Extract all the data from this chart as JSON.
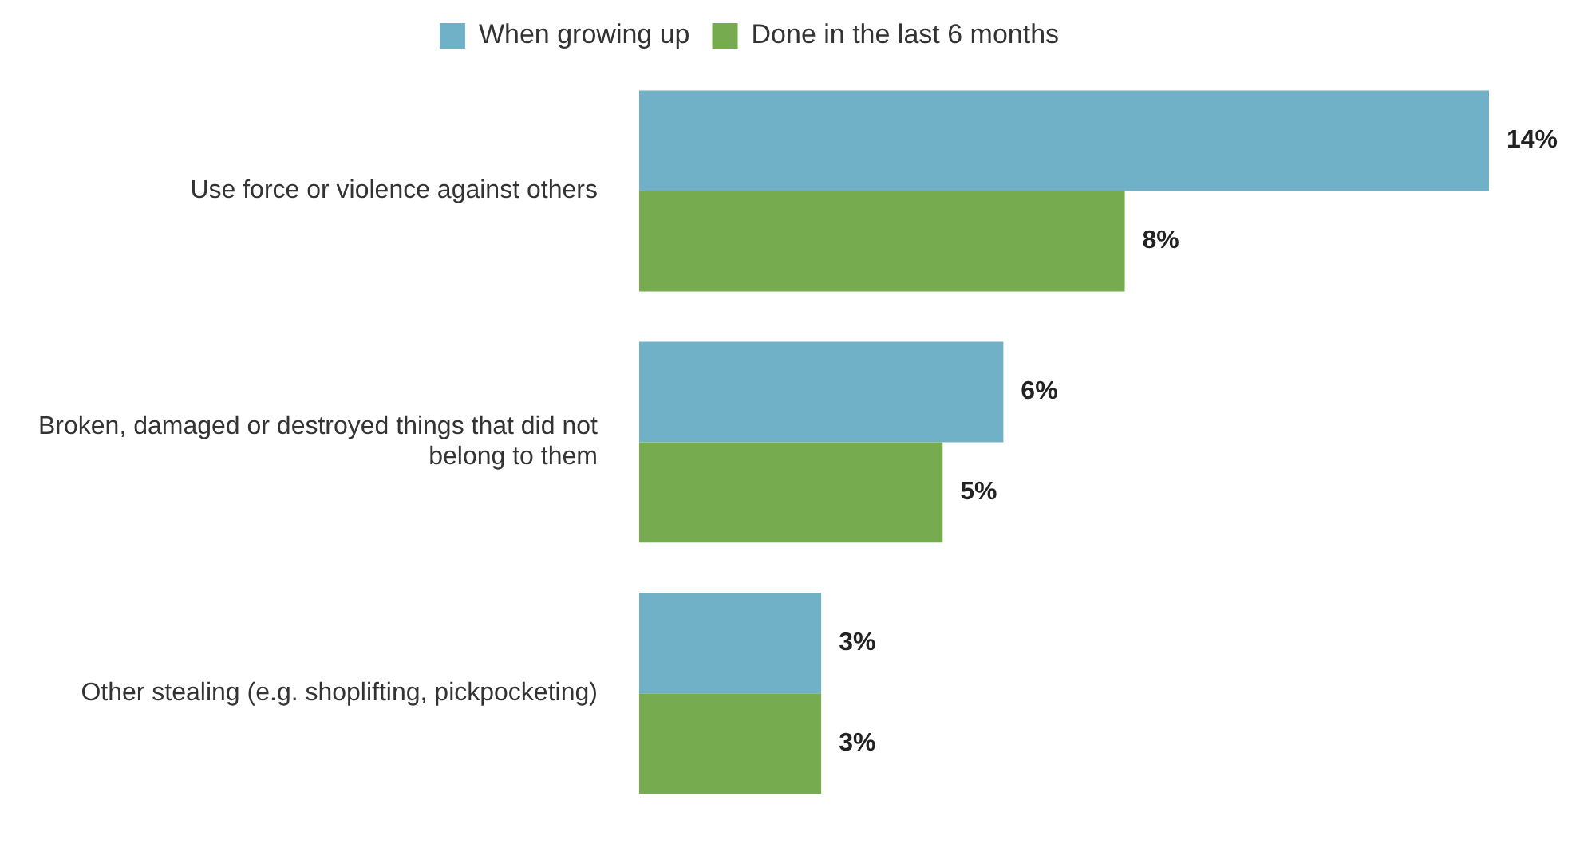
{
  "chart_data": {
    "type": "bar",
    "orientation": "horizontal",
    "categories": [
      "Use force or violence against others",
      "Broken, damaged or destroyed things that did not belong to them",
      "Other stealing (e.g. shoplifting, pickpocketing)"
    ],
    "series": [
      {
        "name": "When growing up",
        "color": "#70b1c8",
        "values": [
          14,
          6,
          3
        ],
        "value_labels": [
          "14%",
          "6%",
          "3%"
        ]
      },
      {
        "name": "Done in the last 6 months",
        "color": "#76ab4f",
        "values": [
          8,
          5,
          3
        ],
        "value_labels": [
          "8%",
          "5%",
          "3%"
        ]
      }
    ],
    "legend": "top"
  }
}
